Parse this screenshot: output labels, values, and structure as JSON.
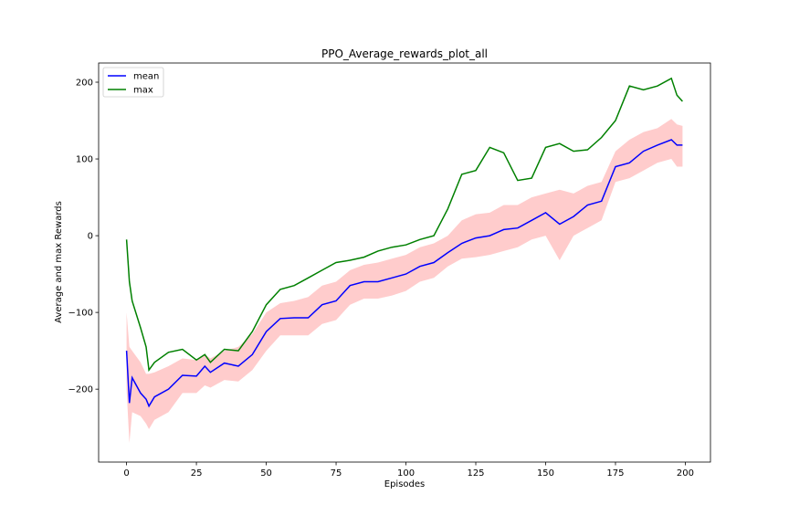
{
  "chart_data": {
    "type": "line",
    "title": "PPO_Average_rewards_plot_all",
    "xlabel": "Episodes",
    "ylabel": "Average and max Rewards",
    "xlim": [
      -10,
      209
    ],
    "ylim": [
      -295,
      225
    ],
    "xticks": [
      0,
      25,
      50,
      75,
      100,
      125,
      150,
      175,
      200
    ],
    "yticks": [
      -200,
      -100,
      0,
      100,
      200
    ],
    "xtick_labels": [
      "0",
      "25",
      "50",
      "75",
      "100",
      "125",
      "150",
      "175",
      "200"
    ],
    "ytick_labels": [
      "−200",
      "−100",
      "0",
      "100",
      "200"
    ],
    "grid": false,
    "legend": {
      "position": "upper-left",
      "entries": [
        "mean",
        "max"
      ]
    },
    "x": [
      0,
      1,
      2,
      5,
      7,
      8,
      10,
      15,
      20,
      25,
      28,
      30,
      35,
      40,
      45,
      50,
      55,
      60,
      65,
      70,
      75,
      80,
      85,
      90,
      95,
      100,
      105,
      110,
      115,
      120,
      125,
      130,
      135,
      140,
      145,
      150,
      155,
      160,
      165,
      170,
      175,
      180,
      185,
      190,
      195,
      197,
      199
    ],
    "series": [
      {
        "name": "mean",
        "color": "#0000ff",
        "values": [
          -150,
          -218,
          -185,
          -205,
          -213,
          -222,
          -210,
          -200,
          -182,
          -183,
          -170,
          -178,
          -166,
          -170,
          -155,
          -125,
          -108,
          -107,
          -107,
          -90,
          -85,
          -65,
          -60,
          -60,
          -55,
          -50,
          -40,
          -35,
          -22,
          -10,
          -3,
          0,
          8,
          10,
          20,
          30,
          15,
          25,
          40,
          45,
          90,
          95,
          110,
          118,
          125,
          118,
          118
        ]
      },
      {
        "name": "max",
        "color": "#008000",
        "values": [
          -5,
          -60,
          -85,
          -120,
          -145,
          -175,
          -165,
          -152,
          -148,
          -162,
          -155,
          -165,
          -148,
          -150,
          -125,
          -90,
          -70,
          -65,
          -55,
          -45,
          -35,
          -32,
          -28,
          -20,
          -15,
          -12,
          -5,
          0,
          35,
          80,
          85,
          115,
          108,
          72,
          75,
          115,
          120,
          110,
          112,
          128,
          150,
          195,
          190,
          195,
          205,
          183,
          175
        ]
      },
      {
        "name": "band-upper",
        "color": "#ffcccc",
        "values": [
          -100,
          -145,
          -150,
          -165,
          -180,
          -180,
          -178,
          -170,
          -160,
          -162,
          -155,
          -160,
          -150,
          -145,
          -128,
          -100,
          -88,
          -85,
          -80,
          -65,
          -60,
          -45,
          -38,
          -35,
          -30,
          -25,
          -15,
          -10,
          0,
          20,
          28,
          30,
          40,
          40,
          50,
          55,
          60,
          55,
          65,
          70,
          110,
          125,
          135,
          140,
          152,
          145,
          143
        ]
      },
      {
        "name": "band-lower",
        "color": "#ffcccc",
        "values": [
          -200,
          -270,
          -230,
          -235,
          -245,
          -252,
          -240,
          -230,
          -205,
          -205,
          -195,
          -198,
          -188,
          -190,
          -175,
          -150,
          -130,
          -130,
          -130,
          -115,
          -110,
          -90,
          -82,
          -82,
          -78,
          -72,
          -60,
          -55,
          -40,
          -30,
          -28,
          -25,
          -20,
          -15,
          -5,
          0,
          -32,
          0,
          10,
          20,
          70,
          75,
          85,
          95,
          100,
          90,
          90
        ]
      }
    ]
  }
}
